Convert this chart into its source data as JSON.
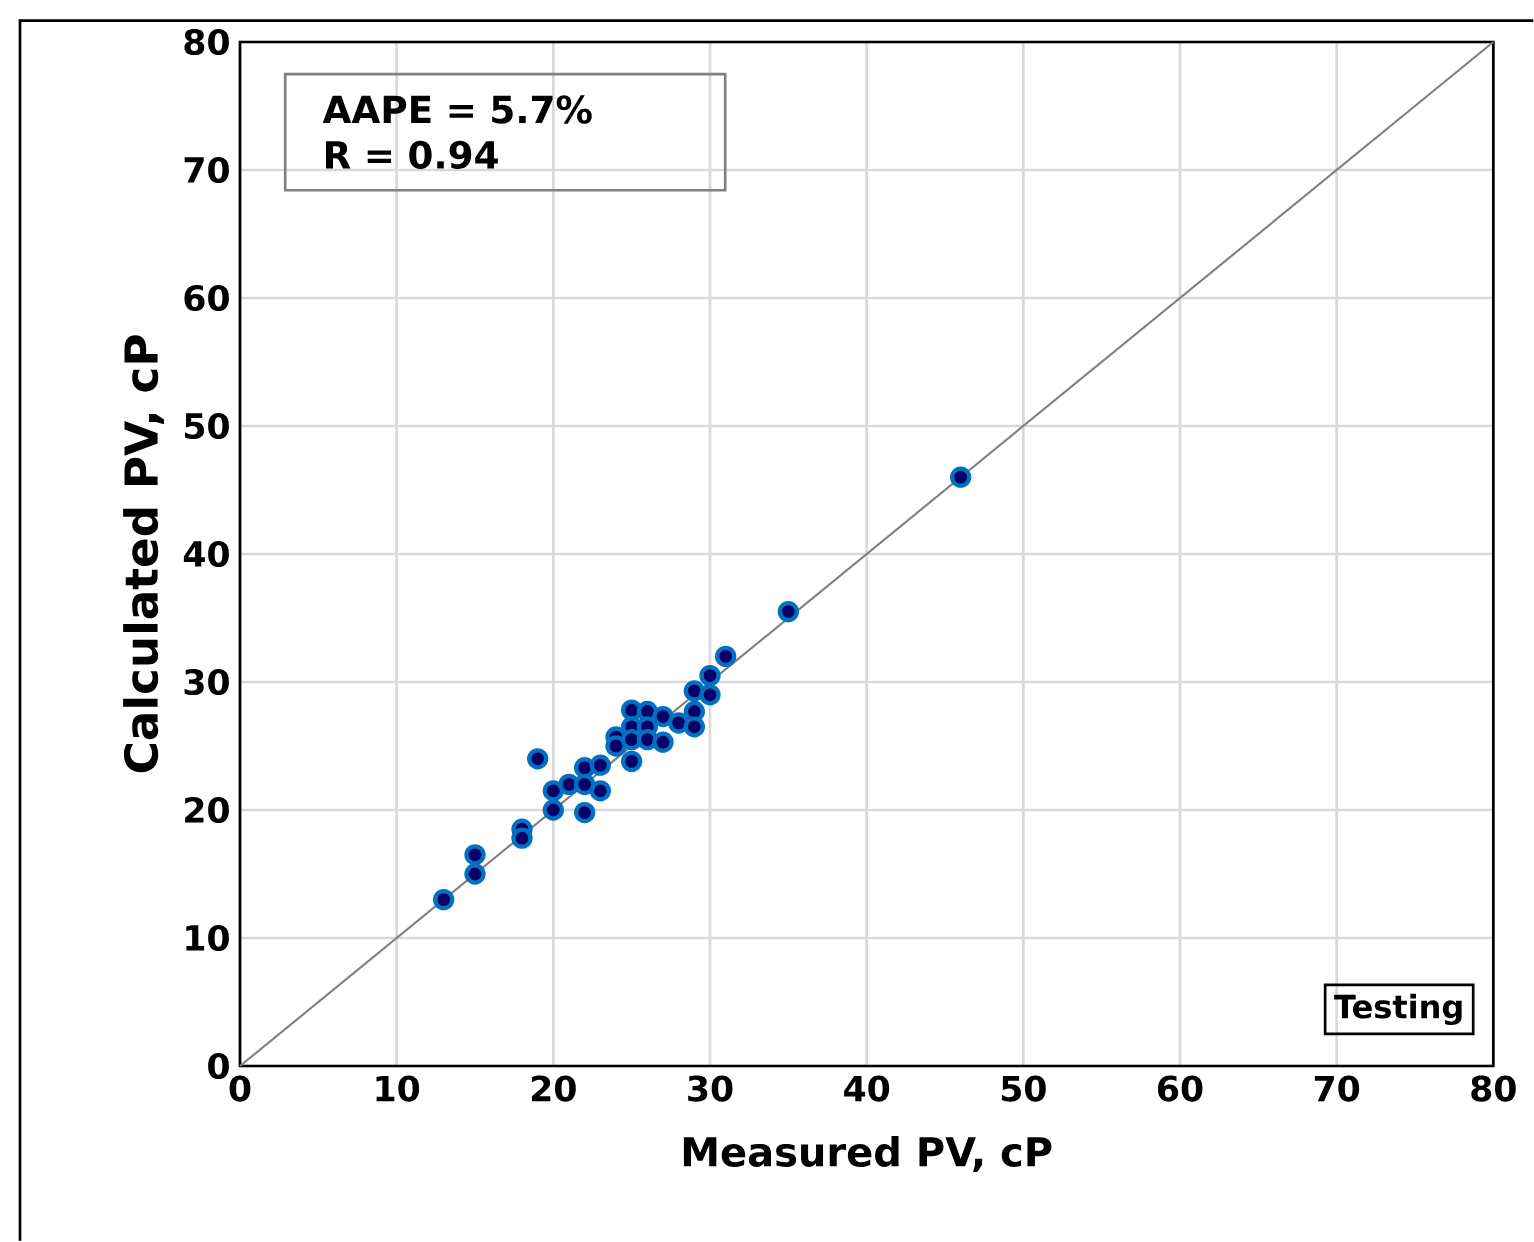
{
  "chart_data": {
    "type": "scatter",
    "xlabel": "Measured PV, cP",
    "ylabel": "Calculated PV, cP",
    "xlim": [
      0,
      80
    ],
    "ylim": [
      0,
      80
    ],
    "xticks": [
      0,
      10,
      20,
      30,
      40,
      50,
      60,
      70,
      80
    ],
    "yticks": [
      0,
      10,
      20,
      30,
      40,
      50,
      60,
      70,
      80
    ],
    "grid": true,
    "annotations": [
      "AAPE = 5.7%",
      "R = 0.94",
      "Testing"
    ],
    "series": [
      {
        "marker": "circle",
        "color": "#0070c0",
        "x": [
          13,
          15,
          15,
          18,
          18,
          19,
          20,
          20,
          21,
          22,
          22,
          22,
          23,
          23,
          24,
          24,
          25,
          25,
          25,
          25,
          26,
          26,
          26,
          27,
          27,
          28,
          29,
          29,
          29,
          30,
          30,
          31,
          35,
          46
        ],
        "values": [
          13,
          16.5,
          15,
          18.5,
          17.8,
          24,
          20,
          21.5,
          22,
          23.3,
          19.8,
          22,
          21.5,
          23.5,
          25.7,
          25,
          23.8,
          27.8,
          26.5,
          25.5,
          27.7,
          26.5,
          25.5,
          27.3,
          25.3,
          26.8,
          27.7,
          26.5,
          29.3,
          30.5,
          29,
          32,
          35.5,
          46
        ]
      },
      {
        "type": "line",
        "marker": "none",
        "color": "#808080",
        "x": [
          0,
          80
        ],
        "values": [
          0,
          80
        ]
      }
    ]
  }
}
